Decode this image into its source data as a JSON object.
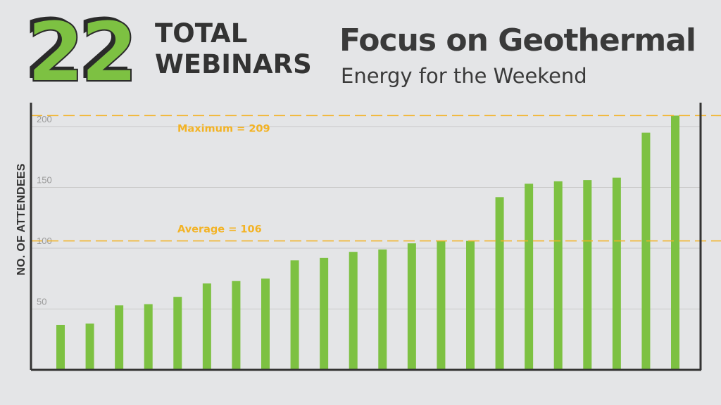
{
  "header": {
    "count": "22",
    "count_label_line1": "TOTAL",
    "count_label_line2": "WEBINARS",
    "title": "Focus on Geothermal",
    "subtitle": "Energy for the Weekend"
  },
  "colors": {
    "background": "#e4e5e7",
    "bar": "#7dc142",
    "reference_line": "#f3b325",
    "axis": "#333333",
    "gridline": "#c8c8c8"
  },
  "chart_data": {
    "type": "bar",
    "ylabel": "NO. OF ATTENDEES",
    "xlabel": "",
    "ylim": [
      0,
      210
    ],
    "yticks": [
      50,
      100,
      150,
      200
    ],
    "grid": true,
    "values": [
      37,
      38,
      53,
      54,
      60,
      71,
      73,
      75,
      90,
      92,
      97,
      99,
      104,
      106,
      106,
      142,
      153,
      155,
      156,
      158,
      195,
      209
    ],
    "reference_lines": [
      {
        "label": "Maximum = 209",
        "value": 209
      },
      {
        "label": "Average = 106",
        "value": 106
      }
    ]
  }
}
